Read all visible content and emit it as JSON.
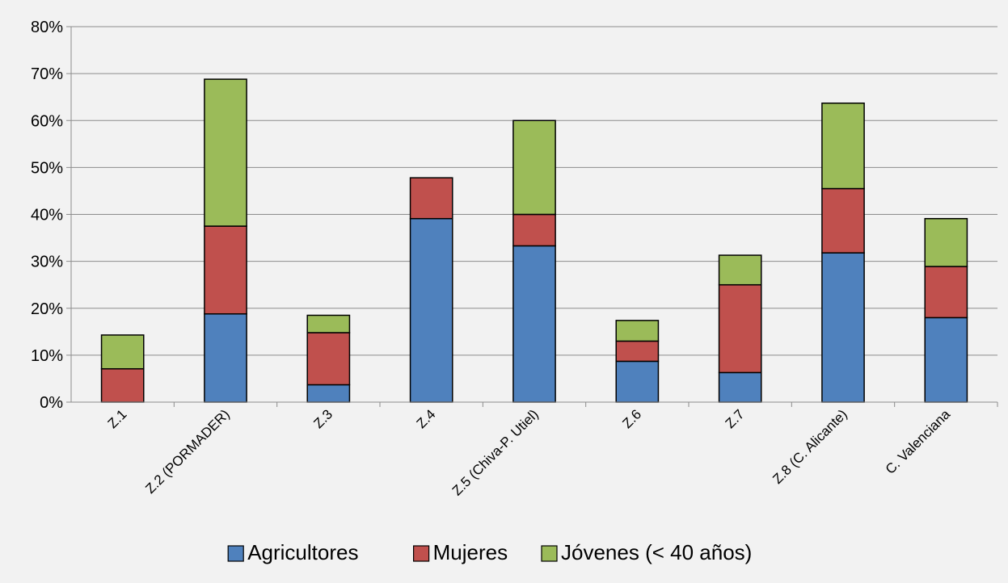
{
  "chart_data": {
    "type": "bar",
    "stacked": true,
    "title": "",
    "xlabel": "",
    "ylabel": "",
    "ylim": [
      0,
      80
    ],
    "yticks": [
      "0%",
      "10%",
      "20%",
      "30%",
      "40%",
      "50%",
      "60%",
      "70%",
      "80%"
    ],
    "grid": true,
    "legend_position": "bottom",
    "categories": [
      "Z.1",
      "Z.2 (PORMADER)",
      "Z.3",
      "Z.4",
      "Z.5 (Chiva-P. Utiel)",
      "Z.6",
      "Z.7",
      "Z.8 (C. Alicante)",
      "C. Valenciana"
    ],
    "series": [
      {
        "name": "Agricultores",
        "color": "#4f81bd",
        "values": [
          0,
          18.8,
          3.7,
          39.1,
          33.3,
          8.7,
          6.3,
          31.8,
          18.0
        ]
      },
      {
        "name": "Mujeres",
        "color": "#c0504d",
        "values": [
          7.1,
          18.7,
          11.1,
          8.7,
          6.7,
          4.3,
          18.7,
          13.7,
          10.9
        ]
      },
      {
        "name": "Jóvenes (< 40 años)",
        "color": "#9bbb59",
        "values": [
          7.2,
          31.3,
          3.7,
          0,
          20.0,
          4.4,
          6.3,
          18.2,
          10.2
        ]
      }
    ]
  }
}
